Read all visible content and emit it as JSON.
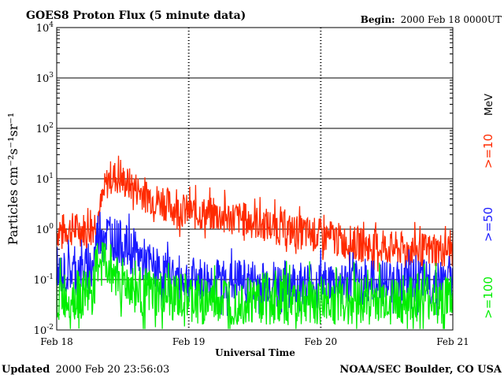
{
  "header": {
    "title": "GOES8 Proton Flux (5 minute data)",
    "begin_label": "Begin:",
    "begin_value": "2000 Feb 18 0000UT"
  },
  "footer": {
    "updated_label": "Updated",
    "updated_value": "2000 Feb 20 23:56:03",
    "credit": "NOAA/SEC Boulder, CO USA"
  },
  "chart_data": {
    "type": "line",
    "xlabel": "Universal Time",
    "ylabel": "Particles cm⁻²s⁻¹sr⁻¹",
    "x_ticks": [
      "Feb 18",
      "Feb 19",
      "Feb 20",
      "Feb 21"
    ],
    "xlim_days": [
      0,
      3
    ],
    "ylim": [
      0.01,
      10000
    ],
    "yscale": "log",
    "y_ticks": [
      {
        "base": "10",
        "exp": "-2"
      },
      {
        "base": "10",
        "exp": "-1"
      },
      {
        "base": "10",
        "exp": "0"
      },
      {
        "base": "10",
        "exp": "1"
      },
      {
        "base": "10",
        "exp": "2"
      },
      {
        "base": "10",
        "exp": "3"
      },
      {
        "base": "10",
        "exp": "4"
      }
    ],
    "legend_unit": "MeV",
    "grid": true,
    "series": [
      {
        "name": ">=10",
        "color": "#ff2a00",
        "points": [
          [
            0.0,
            0.9
          ],
          [
            0.1,
            1.0
          ],
          [
            0.2,
            1.0
          ],
          [
            0.28,
            1.2
          ],
          [
            0.33,
            2.5
          ],
          [
            0.37,
            7.0
          ],
          [
            0.4,
            10.5
          ],
          [
            0.45,
            11.0
          ],
          [
            0.5,
            9.0
          ],
          [
            0.6,
            6.5
          ],
          [
            0.7,
            4.5
          ],
          [
            0.8,
            3.4
          ],
          [
            0.9,
            2.6
          ],
          [
            1.0,
            2.2
          ],
          [
            1.2,
            1.9
          ],
          [
            1.4,
            1.6
          ],
          [
            1.6,
            1.2
          ],
          [
            1.8,
            0.9
          ],
          [
            2.0,
            0.75
          ],
          [
            2.2,
            0.55
          ],
          [
            2.4,
            0.45
          ],
          [
            2.6,
            0.4
          ],
          [
            2.8,
            0.38
          ],
          [
            3.0,
            0.4
          ]
        ]
      },
      {
        "name": ">=50",
        "color": "#1a1aff",
        "points": [
          [
            0.0,
            0.12
          ],
          [
            0.1,
            0.15
          ],
          [
            0.2,
            0.15
          ],
          [
            0.28,
            0.2
          ],
          [
            0.3,
            0.6
          ],
          [
            0.32,
            1.1
          ],
          [
            0.4,
            0.75
          ],
          [
            0.5,
            0.5
          ],
          [
            0.6,
            0.32
          ],
          [
            0.7,
            0.2
          ],
          [
            0.8,
            0.13
          ],
          [
            0.9,
            0.11
          ],
          [
            1.0,
            0.1
          ],
          [
            1.5,
            0.09
          ],
          [
            2.0,
            0.085
          ],
          [
            2.5,
            0.09
          ],
          [
            3.0,
            0.09
          ]
        ]
      },
      {
        "name": ">=100",
        "color": "#00ee00",
        "points": [
          [
            0.0,
            0.045
          ],
          [
            0.2,
            0.05
          ],
          [
            0.28,
            0.07
          ],
          [
            0.3,
            0.15
          ],
          [
            0.32,
            0.28
          ],
          [
            0.4,
            0.18
          ],
          [
            0.5,
            0.1
          ],
          [
            0.6,
            0.06
          ],
          [
            0.8,
            0.045
          ],
          [
            1.0,
            0.04
          ],
          [
            1.5,
            0.04
          ],
          [
            2.0,
            0.04
          ],
          [
            2.5,
            0.04
          ],
          [
            3.0,
            0.04
          ]
        ]
      }
    ]
  }
}
